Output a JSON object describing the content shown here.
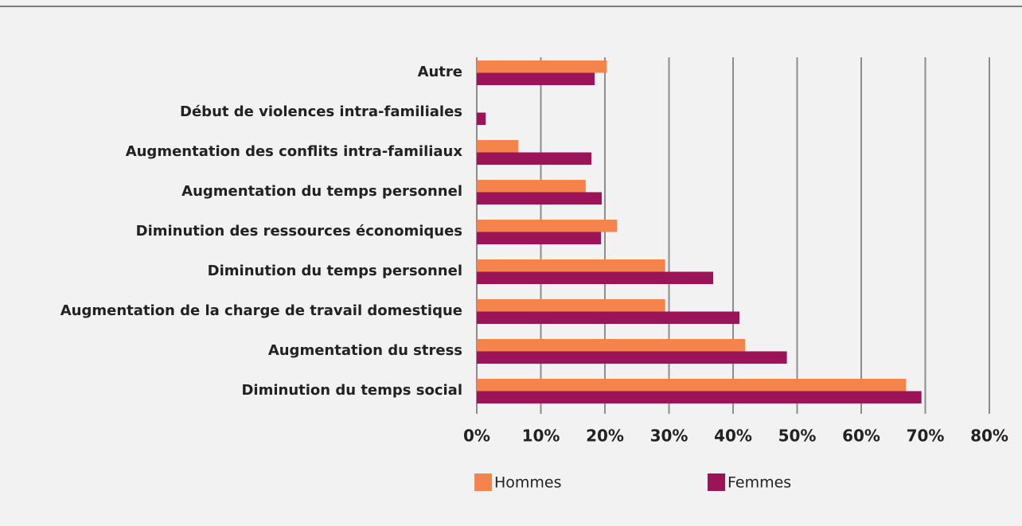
{
  "chart_data": {
    "type": "hbar",
    "categories": [
      "Autre",
      "Début de violences intra-familiales",
      "Augmentation des conflits intra-familiaux",
      "Augmentation du temps personnel",
      "Diminution des ressources économiques",
      "Diminution du temps personnel",
      "Augmentation de la charge de travail domestique",
      "Augmentation du stress",
      "Diminution du temps social"
    ],
    "series": [
      {
        "name": "Hommes",
        "color": "#f4844c",
        "values": [
          20.3,
          0,
          6.5,
          17.0,
          21.9,
          29.4,
          29.4,
          41.9,
          67.0
        ]
      },
      {
        "name": "Femmes",
        "color": "#9b1458",
        "values": [
          18.4,
          1.4,
          17.9,
          19.5,
          19.4,
          36.9,
          41.0,
          48.4,
          69.4
        ]
      }
    ],
    "xlim": [
      0,
      80
    ],
    "xticks": [
      {
        "value": 0,
        "label": "0%"
      },
      {
        "value": 10,
        "label": "10%"
      },
      {
        "value": 20,
        "label": "20%"
      },
      {
        "value": 30,
        "label": "30%"
      },
      {
        "value": 40,
        "label": "40%"
      },
      {
        "value": 50,
        "label": "50%"
      },
      {
        "value": 60,
        "label": "60%"
      },
      {
        "value": 70,
        "label": "70%"
      },
      {
        "value": 80,
        "label": "80%"
      }
    ],
    "grid": true,
    "legend": "bottom"
  }
}
